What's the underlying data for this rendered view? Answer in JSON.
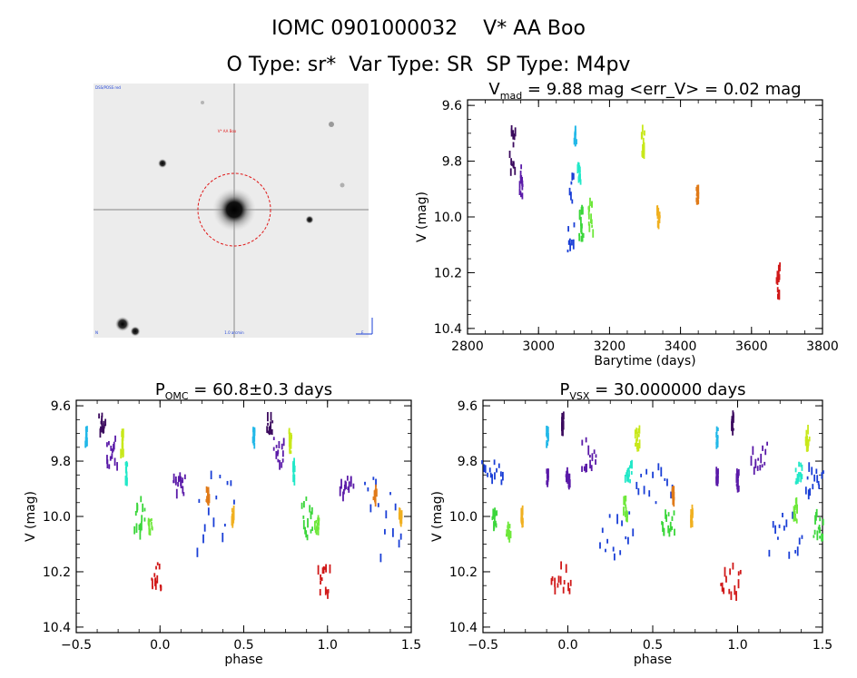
{
  "header": {
    "title": "IOMC 0901000032    V* AA Boo",
    "subtitle": "O Type: sr*  Var Type: SR  SP Type: M4pv"
  },
  "image_panel": {
    "star_label": "V* AA Boo",
    "corner_top_left": "DSS/POSS red",
    "corner_bottom_left": "N",
    "corner_bottom_center": "1.0 arcmin",
    "corner_bottom_right": "E"
  },
  "chart_data": [
    {
      "type": "scatter",
      "panel": "lightcurve",
      "title": {
        "prefix": "V",
        "sub": "mad",
        "suffix": " = 9.88 mag <err_V> = 0.02 mag"
      },
      "xlabel": "Barytime (days)",
      "ylabel": "V (mag)",
      "xlim": [
        2800,
        3800
      ],
      "ylim": [
        10.42,
        9.58
      ],
      "y_inverted": true,
      "xticks": [
        2800,
        3000,
        3200,
        3400,
        3600,
        3800
      ],
      "yticks": [
        9.6,
        9.8,
        10.0,
        10.2,
        10.4
      ],
      "xtick_labels": [
        "2800",
        "3000",
        "3200",
        "3400",
        "3600",
        "3800"
      ],
      "ytick_labels": [
        "9.6",
        "9.8",
        "10.0",
        "10.2",
        "10.4"
      ],
      "series": [
        {
          "color": "#3b0a5e",
          "x0": 2920,
          "x1": 2935,
          "y0": 9.62,
          "y1": 9.84
        },
        {
          "color": "#5a1aa8",
          "x0": 2948,
          "x1": 2956,
          "y0": 9.8,
          "y1": 9.93
        },
        {
          "color": "#1a3fd6",
          "x0": 3082,
          "x1": 3100,
          "y0": 9.8,
          "y1": 10.15
        },
        {
          "color": "#22b8e8",
          "x0": 3102,
          "x1": 3106,
          "y0": 9.67,
          "y1": 9.75
        },
        {
          "color": "#22e8c8",
          "x0": 3112,
          "x1": 3118,
          "y0": 9.79,
          "y1": 9.88
        },
        {
          "color": "#3ad63a",
          "x0": 3116,
          "x1": 3125,
          "y0": 9.91,
          "y1": 10.08
        },
        {
          "color": "#6ee83a",
          "x0": 3140,
          "x1": 3152,
          "y0": 9.92,
          "y1": 10.06
        },
        {
          "color": "#c8e81a",
          "x0": 3292,
          "x1": 3298,
          "y0": 9.67,
          "y1": 9.78
        },
        {
          "color": "#f0b020",
          "x0": 3336,
          "x1": 3340,
          "y0": 9.96,
          "y1": 10.03
        },
        {
          "color": "#e07a18",
          "x0": 3447,
          "x1": 3450,
          "y0": 9.89,
          "y1": 9.95
        },
        {
          "color": "#d01818",
          "x0": 3672,
          "x1": 3680,
          "y0": 10.15,
          "y1": 10.29
        }
      ]
    },
    {
      "type": "scatter",
      "panel": "phase_omc",
      "title": {
        "prefix": "P",
        "sub": "OMC",
        "suffix": " = 60.8±0.3 days"
      },
      "xlabel": "phase",
      "ylabel": "V (mag)",
      "xlim": [
        -0.5,
        1.5
      ],
      "ylim": [
        10.42,
        9.58
      ],
      "y_inverted": true,
      "xticks": [
        -0.5,
        0.0,
        0.5,
        1.0,
        1.5
      ],
      "yticks": [
        9.6,
        9.8,
        10.0,
        10.2,
        10.4
      ],
      "xtick_labels": [
        "−0.5",
        "0.0",
        "0.5",
        "1.0",
        "1.5"
      ],
      "ytick_labels": [
        "9.6",
        "9.8",
        "10.0",
        "10.2",
        "10.4"
      ],
      "series": [
        {
          "color": "#22b8e8",
          "x0": -0.44,
          "x1": -0.44,
          "y0": 9.67,
          "y1": 9.75
        },
        {
          "color": "#3b0a5e",
          "x0": -0.36,
          "x1": -0.33,
          "y0": 9.62,
          "y1": 9.7
        },
        {
          "color": "#5a1aa8",
          "x0": -0.32,
          "x1": -0.26,
          "y0": 9.7,
          "y1": 9.82
        },
        {
          "color": "#c8e81a",
          "x0": -0.23,
          "x1": -0.22,
          "y0": 9.67,
          "y1": 9.78
        },
        {
          "color": "#22e8c8",
          "x0": -0.2,
          "x1": -0.2,
          "y0": 9.79,
          "y1": 9.88
        },
        {
          "color": "#3ad63a",
          "x0": -0.15,
          "x1": -0.09,
          "y0": 9.91,
          "y1": 10.08
        },
        {
          "color": "#6ee83a",
          "x0": -0.07,
          "x1": -0.05,
          "y0": 10.0,
          "y1": 10.06
        },
        {
          "color": "#d01818",
          "x0": -0.05,
          "x1": 0.01,
          "y0": 10.15,
          "y1": 10.29
        },
        {
          "color": "#5a1aa8",
          "x0": 0.08,
          "x1": 0.15,
          "y0": 9.84,
          "y1": 9.93
        },
        {
          "color": "#1a3fd6",
          "x0": 0.22,
          "x1": 0.44,
          "y0": 9.79,
          "y1": 10.15
        },
        {
          "color": "#e07a18",
          "x0": 0.28,
          "x1": 0.29,
          "y0": 9.89,
          "y1": 9.95
        },
        {
          "color": "#f0b020",
          "x0": 0.43,
          "x1": 0.44,
          "y0": 9.96,
          "y1": 10.03
        },
        {
          "color": "#22b8e8",
          "x0": 0.56,
          "x1": 0.56,
          "y0": 9.67,
          "y1": 9.75
        },
        {
          "color": "#3b0a5e",
          "x0": 0.64,
          "x1": 0.67,
          "y0": 9.62,
          "y1": 9.7
        },
        {
          "color": "#5a1aa8",
          "x0": 0.68,
          "x1": 0.74,
          "y0": 9.7,
          "y1": 9.82
        },
        {
          "color": "#c8e81a",
          "x0": 0.77,
          "x1": 0.78,
          "y0": 9.67,
          "y1": 9.78
        },
        {
          "color": "#22e8c8",
          "x0": 0.8,
          "x1": 0.8,
          "y0": 9.79,
          "y1": 9.88
        },
        {
          "color": "#3ad63a",
          "x0": 0.85,
          "x1": 0.91,
          "y0": 9.91,
          "y1": 10.08
        },
        {
          "color": "#6ee83a",
          "x0": 0.93,
          "x1": 0.95,
          "y0": 10.0,
          "y1": 10.06
        },
        {
          "color": "#d01818",
          "x0": 0.95,
          "x1": 1.01,
          "y0": 10.15,
          "y1": 10.29
        },
        {
          "color": "#5a1aa8",
          "x0": 1.08,
          "x1": 1.15,
          "y0": 9.84,
          "y1": 9.93
        },
        {
          "color": "#1a3fd6",
          "x0": 1.22,
          "x1": 1.44,
          "y0": 9.79,
          "y1": 10.15
        },
        {
          "color": "#e07a18",
          "x0": 1.28,
          "x1": 1.29,
          "y0": 9.89,
          "y1": 9.95
        },
        {
          "color": "#f0b020",
          "x0": 1.43,
          "x1": 1.44,
          "y0": 9.96,
          "y1": 10.03
        }
      ]
    },
    {
      "type": "scatter",
      "panel": "phase_vsx",
      "title": {
        "prefix": "P",
        "sub": "VSX",
        "suffix": " = 30.000000 days"
      },
      "xlabel": "phase",
      "ylabel": "V (mag)",
      "xlim": [
        -0.5,
        1.5
      ],
      "ylim": [
        10.42,
        9.58
      ],
      "y_inverted": true,
      "xticks": [
        -0.5,
        0.0,
        0.5,
        1.0,
        1.5
      ],
      "yticks": [
        9.6,
        9.8,
        10.0,
        10.2,
        10.4
      ],
      "xtick_labels": [
        "−0.5",
        "0.0",
        "0.5",
        "1.0",
        "1.5"
      ],
      "ytick_labels": [
        "9.6",
        "9.8",
        "10.0",
        "10.2",
        "10.4"
      ],
      "series": [
        {
          "color": "#1a3fd6",
          "x0": -0.5,
          "x1": -0.38,
          "y0": 9.79,
          "y1": 9.88
        },
        {
          "color": "#3ad63a",
          "x0": -0.44,
          "x1": -0.42,
          "y0": 9.97,
          "y1": 10.04
        },
        {
          "color": "#6ee83a",
          "x0": -0.36,
          "x1": -0.34,
          "y0": 10.02,
          "y1": 10.08
        },
        {
          "color": "#f0b020",
          "x0": -0.27,
          "x1": -0.27,
          "y0": 9.96,
          "y1": 10.03
        },
        {
          "color": "#22b8e8",
          "x0": -0.12,
          "x1": -0.12,
          "y0": 9.67,
          "y1": 9.75
        },
        {
          "color": "#5a1aa8",
          "x0": -0.12,
          "x1": -0.12,
          "y0": 9.82,
          "y1": 9.88
        },
        {
          "color": "#3b0a5e",
          "x0": -0.03,
          "x1": -0.03,
          "y0": 9.62,
          "y1": 9.7
        },
        {
          "color": "#5a1aa8",
          "x0": -0.01,
          "x1": 0.01,
          "y0": 9.82,
          "y1": 9.9
        },
        {
          "color": "#d01818",
          "x0": -0.1,
          "x1": 0.02,
          "y0": 10.15,
          "y1": 10.29
        },
        {
          "color": "#5a1aa8",
          "x0": 0.08,
          "x1": 0.17,
          "y0": 9.7,
          "y1": 9.84
        },
        {
          "color": "#1a3fd6",
          "x0": 0.19,
          "x1": 0.38,
          "y0": 9.95,
          "y1": 10.15
        },
        {
          "color": "#6ee83a",
          "x0": 0.33,
          "x1": 0.35,
          "y0": 9.92,
          "y1": 10.02
        },
        {
          "color": "#22e8c8",
          "x0": 0.34,
          "x1": 0.38,
          "y0": 9.79,
          "y1": 9.88
        },
        {
          "color": "#c8e81a",
          "x0": 0.4,
          "x1": 0.42,
          "y0": 9.67,
          "y1": 9.76
        },
        {
          "color": "#1a3fd6",
          "x0": 0.4,
          "x1": 0.62,
          "y0": 9.79,
          "y1": 9.95
        },
        {
          "color": "#3ad63a",
          "x0": 0.55,
          "x1": 0.63,
          "y0": 9.97,
          "y1": 10.08
        },
        {
          "color": "#e07a18",
          "x0": 0.62,
          "x1": 0.62,
          "y0": 9.89,
          "y1": 9.95
        },
        {
          "color": "#f0b020",
          "x0": 0.73,
          "x1": 0.73,
          "y0": 9.96,
          "y1": 10.03
        },
        {
          "color": "#22b8e8",
          "x0": 0.88,
          "x1": 0.88,
          "y0": 9.67,
          "y1": 9.75
        },
        {
          "color": "#5a1aa8",
          "x0": 0.88,
          "x1": 0.88,
          "y0": 9.82,
          "y1": 9.88
        },
        {
          "color": "#3b0a5e",
          "x0": 0.97,
          "x1": 0.97,
          "y0": 9.62,
          "y1": 9.7
        },
        {
          "color": "#5a1aa8",
          "x0": 0.99,
          "x1": 1.01,
          "y0": 9.82,
          "y1": 9.9
        },
        {
          "color": "#d01818",
          "x0": 0.9,
          "x1": 1.02,
          "y0": 10.15,
          "y1": 10.29
        },
        {
          "color": "#5a1aa8",
          "x0": 1.08,
          "x1": 1.17,
          "y0": 9.7,
          "y1": 9.84
        },
        {
          "color": "#1a3fd6",
          "x0": 1.19,
          "x1": 1.38,
          "y0": 9.95,
          "y1": 10.15
        },
        {
          "color": "#6ee83a",
          "x0": 1.33,
          "x1": 1.35,
          "y0": 9.92,
          "y1": 10.02
        },
        {
          "color": "#22e8c8",
          "x0": 1.34,
          "x1": 1.38,
          "y0": 9.79,
          "y1": 9.88
        },
        {
          "color": "#c8e81a",
          "x0": 1.4,
          "x1": 1.42,
          "y0": 9.67,
          "y1": 9.76
        },
        {
          "color": "#1a3fd6",
          "x0": 1.4,
          "x1": 1.5,
          "y0": 9.79,
          "y1": 9.95
        },
        {
          "color": "#3ad63a",
          "x0": 1.45,
          "x1": 1.5,
          "y0": 9.97,
          "y1": 10.08
        }
      ]
    }
  ]
}
